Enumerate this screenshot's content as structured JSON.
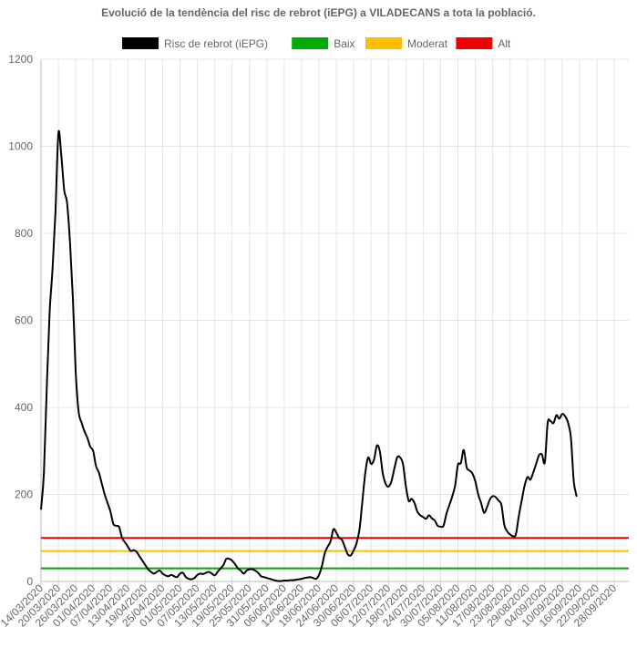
{
  "chart_data": {
    "type": "line",
    "title": "Evolució de la tendència del risc de rebrot (iEPG) a VILADECANS a tota la població.",
    "xlabel": "",
    "ylabel": "",
    "ylim": [
      0,
      1200
    ],
    "yticks": [
      0,
      200,
      400,
      600,
      800,
      1000,
      1200
    ],
    "x_start": "14/03/2020",
    "x_end": "03/10/2020",
    "x_ticks": [
      "14/03/2020",
      "20/03/2020",
      "26/03/2020",
      "01/04/2020",
      "07/04/2020",
      "13/04/2020",
      "19/04/2020",
      "25/04/2020",
      "01/05/2020",
      "07/05/2020",
      "13/05/2020",
      "19/05/2020",
      "25/05/2020",
      "31/05/2020",
      "06/06/2020",
      "12/06/2020",
      "18/06/2020",
      "24/06/2020",
      "30/06/2020",
      "06/07/2020",
      "12/07/2020",
      "18/07/2020",
      "24/07/2020",
      "30/07/2020",
      "05/08/2020",
      "11/08/2020",
      "17/08/2020",
      "23/08/2020",
      "29/08/2020",
      "04/09/2020",
      "10/09/2020",
      "16/09/2020",
      "22/09/2020",
      "28/09/2020"
    ],
    "grid": true,
    "legend_position": "top-center",
    "series": [
      {
        "name": "Risc de rebrot (iEPG)",
        "color": "#000000",
        "points": [
          [
            "14/03/2020",
            165
          ],
          [
            "15/03/2020",
            250
          ],
          [
            "16/03/2020",
            450
          ],
          [
            "17/03/2020",
            620
          ],
          [
            "18/03/2020",
            720
          ],
          [
            "19/03/2020",
            850
          ],
          [
            "20/03/2020",
            1030
          ],
          [
            "21/03/2020",
            980
          ],
          [
            "22/03/2020",
            900
          ],
          [
            "23/03/2020",
            870
          ],
          [
            "24/03/2020",
            780
          ],
          [
            "25/03/2020",
            650
          ],
          [
            "26/03/2020",
            480
          ],
          [
            "27/03/2020",
            390
          ],
          [
            "28/03/2020",
            365
          ],
          [
            "29/03/2020",
            345
          ],
          [
            "30/03/2020",
            330
          ],
          [
            "31/03/2020",
            310
          ],
          [
            "01/04/2020",
            300
          ],
          [
            "02/04/2020",
            265
          ],
          [
            "03/04/2020",
            250
          ],
          [
            "04/04/2020",
            225
          ],
          [
            "05/04/2020",
            200
          ],
          [
            "06/04/2020",
            180
          ],
          [
            "07/04/2020",
            160
          ],
          [
            "08/04/2020",
            132
          ],
          [
            "09/04/2020",
            128
          ],
          [
            "10/04/2020",
            125
          ],
          [
            "11/04/2020",
            100
          ],
          [
            "12/04/2020",
            90
          ],
          [
            "13/04/2020",
            80
          ],
          [
            "14/04/2020",
            70
          ],
          [
            "15/04/2020",
            72
          ],
          [
            "16/04/2020",
            68
          ],
          [
            "17/04/2020",
            58
          ],
          [
            "18/04/2020",
            48
          ],
          [
            "19/04/2020",
            38
          ],
          [
            "20/04/2020",
            28
          ],
          [
            "21/04/2020",
            22
          ],
          [
            "22/04/2020",
            18
          ],
          [
            "23/04/2020",
            22
          ],
          [
            "24/04/2020",
            25
          ],
          [
            "25/04/2020",
            18
          ],
          [
            "26/04/2020",
            14
          ],
          [
            "27/04/2020",
            12
          ],
          [
            "28/04/2020",
            15
          ],
          [
            "29/04/2020",
            12
          ],
          [
            "30/04/2020",
            10
          ],
          [
            "01/05/2020",
            18
          ],
          [
            "02/05/2020",
            20
          ],
          [
            "03/05/2020",
            10
          ],
          [
            "04/05/2020",
            6
          ],
          [
            "05/05/2020",
            5
          ],
          [
            "06/05/2020",
            8
          ],
          [
            "07/05/2020",
            15
          ],
          [
            "08/05/2020",
            18
          ],
          [
            "09/05/2020",
            17
          ],
          [
            "10/05/2020",
            20
          ],
          [
            "11/05/2020",
            22
          ],
          [
            "12/05/2020",
            18
          ],
          [
            "13/05/2020",
            14
          ],
          [
            "14/05/2020",
            22
          ],
          [
            "15/05/2020",
            30
          ],
          [
            "16/05/2020",
            38
          ],
          [
            "17/05/2020",
            52
          ],
          [
            "18/05/2020",
            52
          ],
          [
            "19/05/2020",
            48
          ],
          [
            "20/05/2020",
            40
          ],
          [
            "21/05/2020",
            30
          ],
          [
            "22/05/2020",
            25
          ],
          [
            "23/05/2020",
            18
          ],
          [
            "24/05/2020",
            25
          ],
          [
            "25/05/2020",
            28
          ],
          [
            "26/05/2020",
            28
          ],
          [
            "27/05/2020",
            25
          ],
          [
            "28/05/2020",
            20
          ],
          [
            "29/05/2020",
            12
          ],
          [
            "30/05/2020",
            10
          ],
          [
            "31/05/2020",
            8
          ],
          [
            "01/06/2020",
            6
          ],
          [
            "02/06/2020",
            4
          ],
          [
            "03/06/2020",
            2
          ],
          [
            "04/06/2020",
            1
          ],
          [
            "05/06/2020",
            1
          ],
          [
            "06/06/2020",
            2
          ],
          [
            "07/06/2020",
            2
          ],
          [
            "08/06/2020",
            3
          ],
          [
            "09/06/2020",
            3
          ],
          [
            "10/06/2020",
            4
          ],
          [
            "11/06/2020",
            5
          ],
          [
            "12/06/2020",
            6
          ],
          [
            "13/06/2020",
            8
          ],
          [
            "14/06/2020",
            9
          ],
          [
            "15/06/2020",
            10
          ],
          [
            "16/06/2020",
            8
          ],
          [
            "17/06/2020",
            6
          ],
          [
            "18/06/2020",
            15
          ],
          [
            "19/06/2020",
            35
          ],
          [
            "20/06/2020",
            65
          ],
          [
            "21/06/2020",
            80
          ],
          [
            "22/06/2020",
            92
          ],
          [
            "23/06/2020",
            120
          ],
          [
            "24/06/2020",
            112
          ],
          [
            "25/06/2020",
            100
          ],
          [
            "26/06/2020",
            95
          ],
          [
            "27/06/2020",
            78
          ],
          [
            "28/06/2020",
            62
          ],
          [
            "29/06/2020",
            60
          ],
          [
            "30/06/2020",
            72
          ],
          [
            "01/07/2020",
            88
          ],
          [
            "02/07/2020",
            120
          ],
          [
            "03/07/2020",
            185
          ],
          [
            "04/07/2020",
            250
          ],
          [
            "05/07/2020",
            285
          ],
          [
            "06/07/2020",
            270
          ],
          [
            "07/07/2020",
            280
          ],
          [
            "08/07/2020",
            312
          ],
          [
            "09/07/2020",
            300
          ],
          [
            "10/07/2020",
            250
          ],
          [
            "11/07/2020",
            225
          ],
          [
            "12/07/2020",
            218
          ],
          [
            "13/07/2020",
            230
          ],
          [
            "14/07/2020",
            258
          ],
          [
            "15/07/2020",
            285
          ],
          [
            "16/07/2020",
            285
          ],
          [
            "17/07/2020",
            270
          ],
          [
            "18/07/2020",
            220
          ],
          [
            "19/07/2020",
            185
          ],
          [
            "20/07/2020",
            190
          ],
          [
            "21/07/2020",
            180
          ],
          [
            "22/07/2020",
            160
          ],
          [
            "23/07/2020",
            152
          ],
          [
            "24/07/2020",
            148
          ],
          [
            "25/07/2020",
            144
          ],
          [
            "26/07/2020",
            152
          ],
          [
            "27/07/2020",
            145
          ],
          [
            "28/07/2020",
            140
          ],
          [
            "29/07/2020",
            128
          ],
          [
            "30/07/2020",
            126
          ],
          [
            "31/07/2020",
            128
          ],
          [
            "01/08/2020",
            155
          ],
          [
            "02/08/2020",
            175
          ],
          [
            "03/08/2020",
            195
          ],
          [
            "04/08/2020",
            220
          ],
          [
            "05/08/2020",
            268
          ],
          [
            "06/08/2020",
            272
          ],
          [
            "07/08/2020",
            302
          ],
          [
            "08/08/2020",
            262
          ],
          [
            "09/08/2020",
            255
          ],
          [
            "10/08/2020",
            248
          ],
          [
            "11/08/2020",
            230
          ],
          [
            "12/08/2020",
            200
          ],
          [
            "13/08/2020",
            180
          ],
          [
            "14/08/2020",
            158
          ],
          [
            "15/08/2020",
            170
          ],
          [
            "16/08/2020",
            188
          ],
          [
            "17/08/2020",
            196
          ],
          [
            "18/08/2020",
            194
          ],
          [
            "19/08/2020",
            186
          ],
          [
            "20/08/2020",
            176
          ],
          [
            "21/08/2020",
            130
          ],
          [
            "22/08/2020",
            115
          ],
          [
            "23/08/2020",
            108
          ],
          [
            "24/08/2020",
            104
          ],
          [
            "25/08/2020",
            108
          ],
          [
            "26/08/2020",
            150
          ],
          [
            "27/08/2020",
            185
          ],
          [
            "28/08/2020",
            220
          ],
          [
            "29/08/2020",
            240
          ],
          [
            "30/08/2020",
            234
          ],
          [
            "31/08/2020",
            250
          ],
          [
            "01/09/2020",
            270
          ],
          [
            "02/09/2020",
            290
          ],
          [
            "03/09/2020",
            292
          ],
          [
            "04/09/2020",
            274
          ],
          [
            "05/09/2020",
            365
          ],
          [
            "06/09/2020",
            368
          ],
          [
            "07/09/2020",
            364
          ],
          [
            "08/09/2020",
            382
          ],
          [
            "09/09/2020",
            374
          ],
          [
            "10/09/2020",
            385
          ],
          [
            "11/09/2020",
            380
          ],
          [
            "12/09/2020",
            365
          ],
          [
            "13/09/2020",
            330
          ],
          [
            "14/09/2020",
            230
          ],
          [
            "15/09/2020",
            195
          ]
        ]
      },
      {
        "name": "Baix",
        "color": "#00aa00",
        "constant": 30
      },
      {
        "name": "Moderat",
        "color": "#ffbf00",
        "constant": 70
      },
      {
        "name": "Alt",
        "color": "#ee0000",
        "constant": 100
      }
    ]
  }
}
